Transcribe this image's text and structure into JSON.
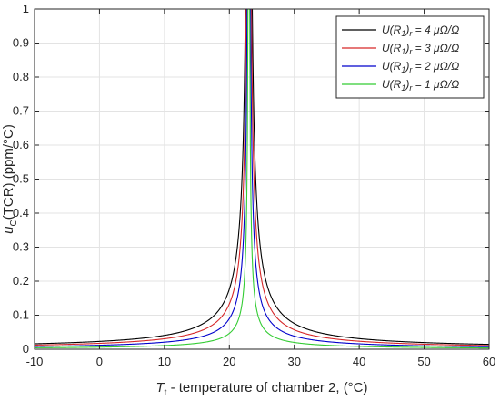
{
  "chart_data": {
    "type": "line",
    "title": "",
    "xlabel": {
      "symbol": "T",
      "sub": "t",
      "rest": " - temperature of chamber 2, (°C)"
    },
    "ylabel": {
      "symbol": "u",
      "sub": "C",
      "rest": "(TCR) (ppm/°C)"
    },
    "xlim": [
      -10,
      60
    ],
    "ylim": [
      0,
      1
    ],
    "xticks": [
      -10,
      0,
      10,
      20,
      30,
      40,
      50,
      60
    ],
    "yticks": [
      0,
      0.1,
      0.2,
      0.3,
      0.4,
      0.5,
      0.6,
      0.7,
      0.8,
      0.9,
      1
    ],
    "grid": true,
    "legend_position": "top-right",
    "asymptote_x": 23,
    "series": [
      {
        "name": "U(R1)r = 4 μΩ/Ω",
        "label_suffix": " = 4 μΩ/Ω",
        "color": "#000000",
        "k": 0.53
      },
      {
        "name": "U(R1)r = 3 μΩ/Ω",
        "label_suffix": " = 3 μΩ/Ω",
        "color": "#d62728",
        "k": 0.4
      },
      {
        "name": "U(R1)r = 2 μΩ/Ω",
        "label_suffix": " = 2 μΩ/Ω",
        "color": "#0000cc",
        "k": 0.27
      },
      {
        "name": "U(R1)r = 1 μΩ/Ω",
        "label_suffix": " = 1 μΩ/Ω",
        "color": "#33cc33",
        "k": 0.14
      }
    ],
    "legend_symbol": {
      "main": "U(R",
      "sub1": "1",
      "close": ")",
      "sub2": "r"
    }
  }
}
